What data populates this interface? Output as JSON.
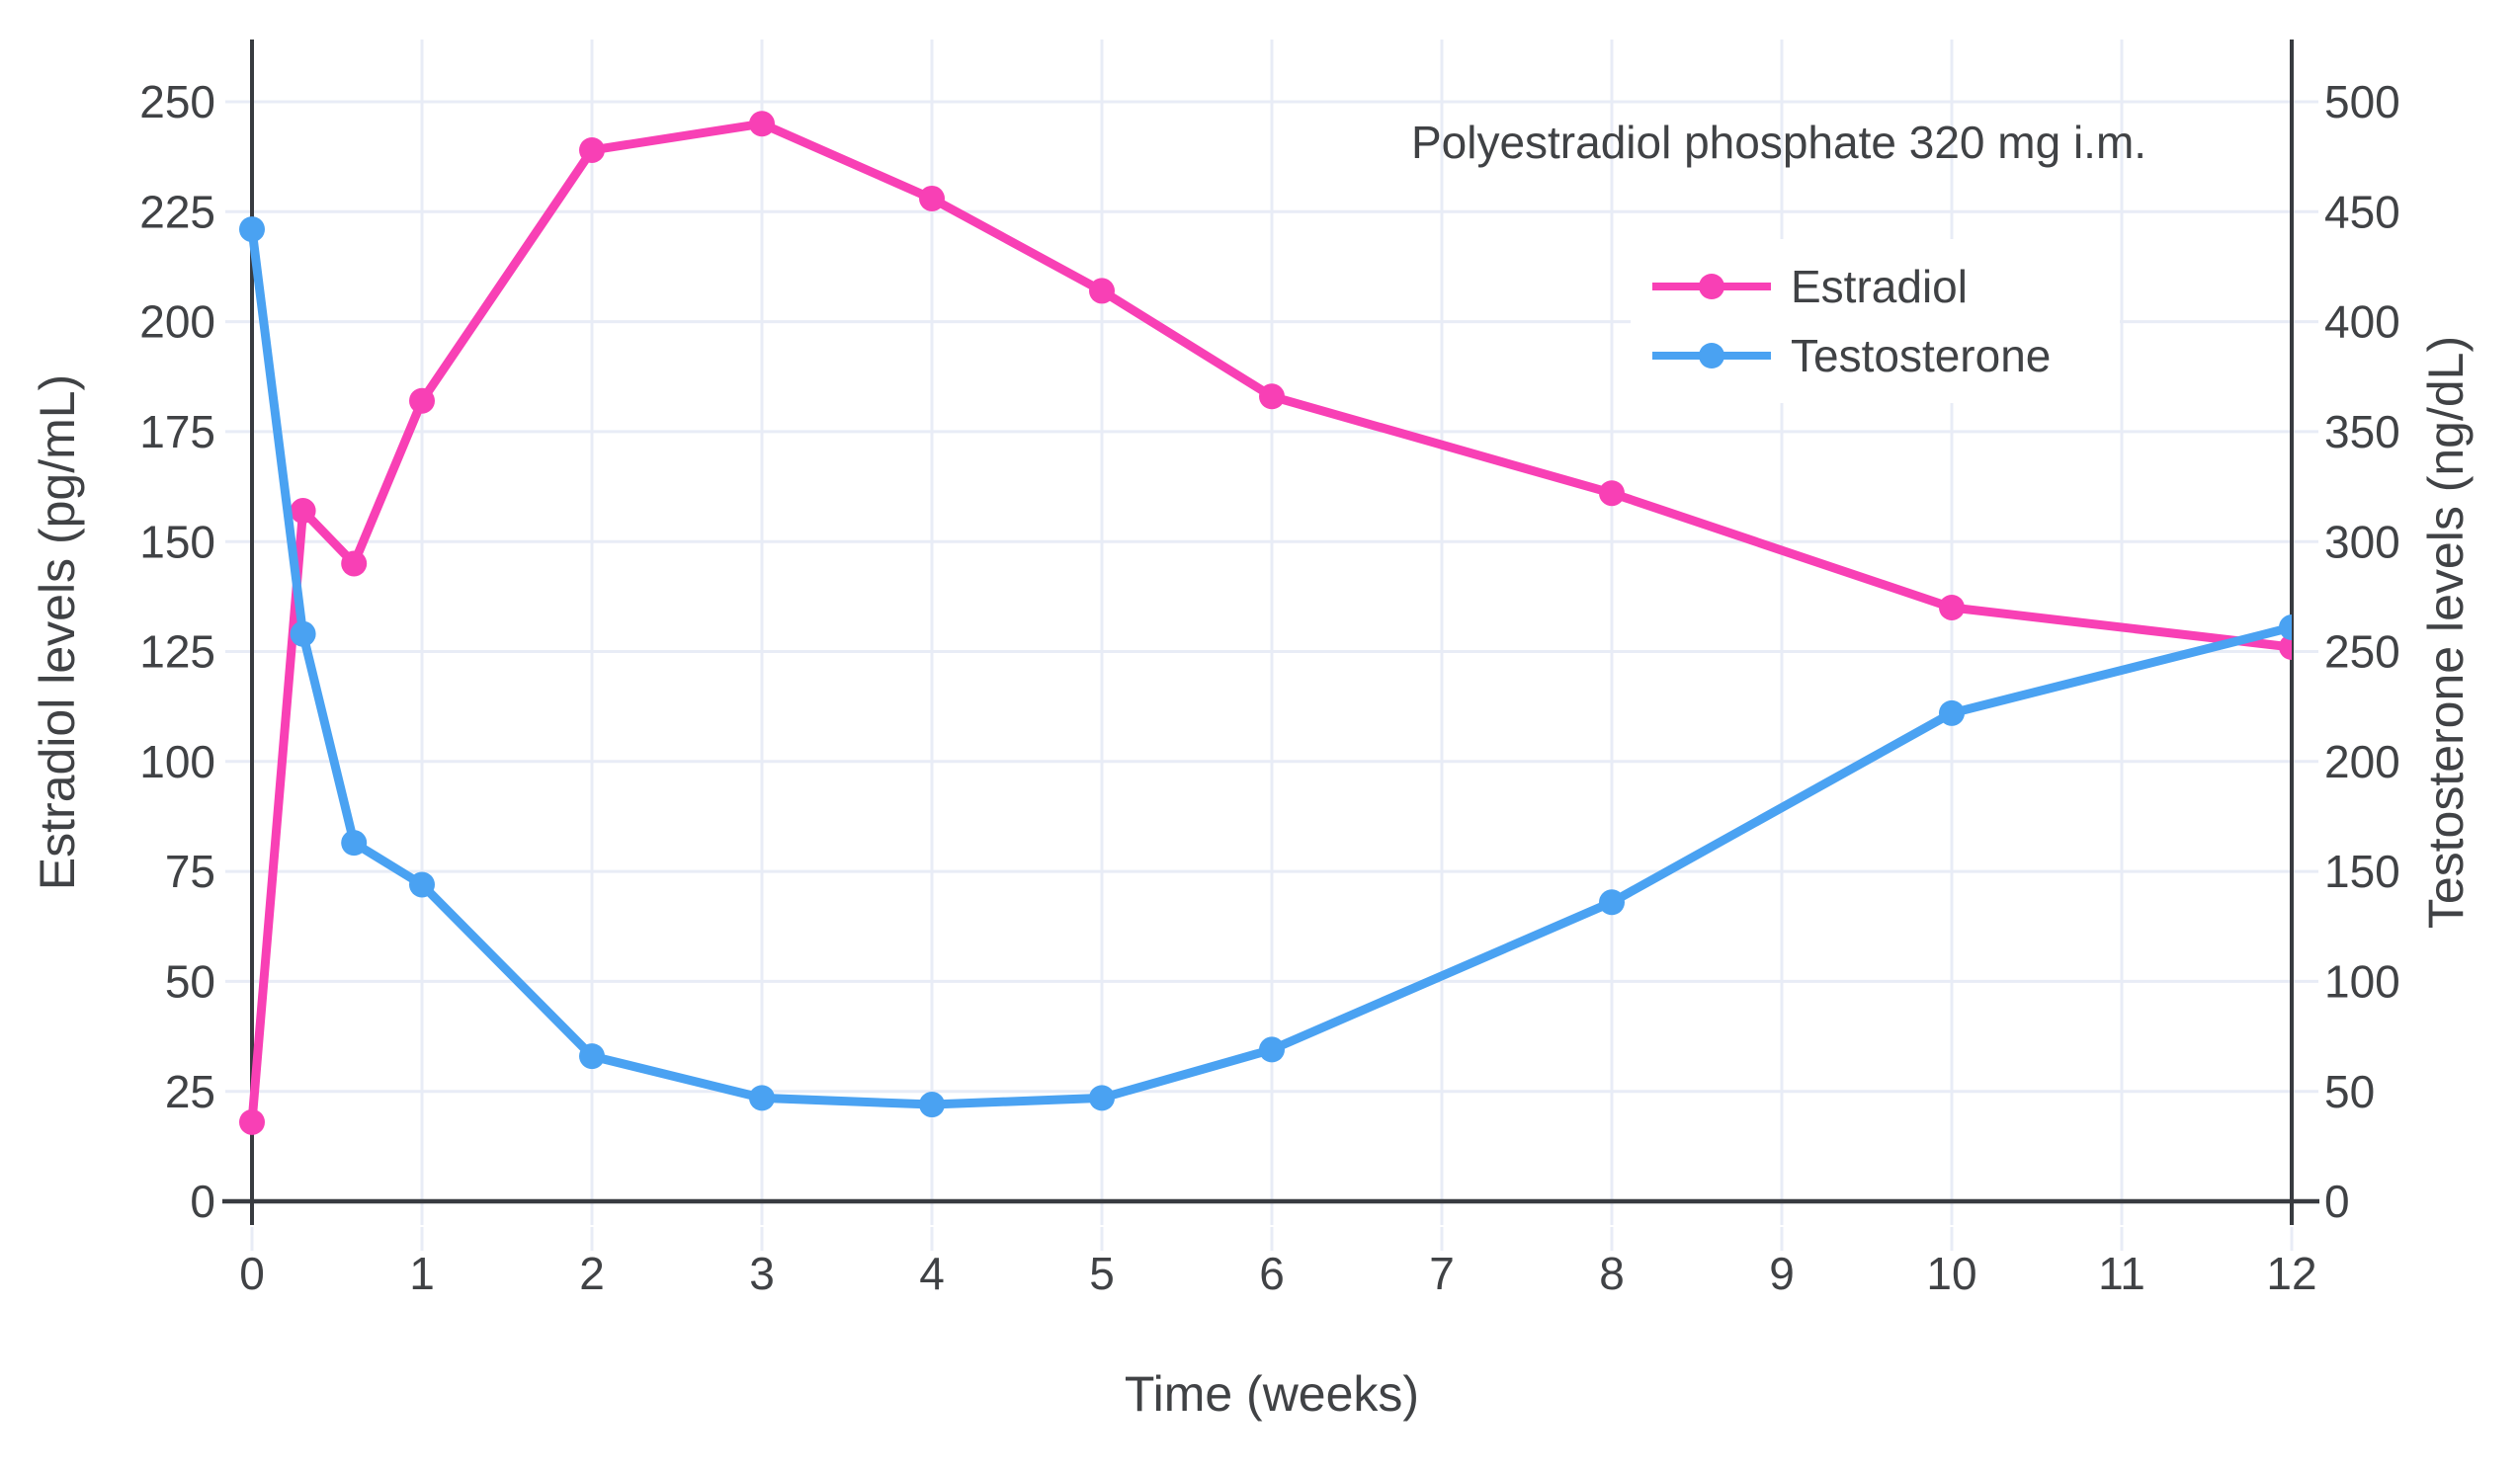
{
  "chart_data": {
    "type": "line",
    "annotation": "Polyestradiol phosphate 320 mg i.m.",
    "x": [
      0,
      0.3,
      0.6,
      1,
      2,
      3,
      4,
      5,
      6,
      8,
      10,
      12
    ],
    "series": [
      {
        "name": "Estradiol",
        "axis": "left",
        "color": "#f840b5",
        "values": [
          18,
          157,
          145,
          182,
          239,
          245,
          228,
          207,
          183,
          161,
          135,
          126
        ]
      },
      {
        "name": "Testosterone",
        "axis": "right",
        "color": "#4aa2f2",
        "values": [
          442,
          258,
          163,
          144,
          66,
          47,
          44,
          47,
          69,
          136,
          222,
          261
        ]
      }
    ],
    "x_axis": {
      "label": "Time (weeks)",
      "ticks": [
        0,
        1,
        2,
        3,
        4,
        5,
        6,
        7,
        8,
        9,
        10,
        11,
        12
      ],
      "range": [
        0,
        12
      ]
    },
    "y_axis_left": {
      "label": "Estradiol levels (pg/mL)",
      "ticks": [
        0,
        25,
        50,
        75,
        100,
        125,
        150,
        175,
        200,
        225,
        250
      ],
      "range": [
        0,
        250
      ]
    },
    "y_axis_right": {
      "label": "Testosterone levels (ng/dL)",
      "ticks": [
        0,
        50,
        100,
        150,
        200,
        250,
        300,
        350,
        400,
        450,
        500
      ],
      "range": [
        0,
        500
      ]
    },
    "legend": {
      "position": "top-right",
      "entries": [
        "Estradiol",
        "Testosterone"
      ]
    },
    "grid": true,
    "colors": {
      "text": "#404245",
      "axis_line": "#383b40",
      "grid_line": "#e8ecf6",
      "background": "#ffffff",
      "estradiol": "#f840b5",
      "testosterone": "#4aa2f2"
    }
  }
}
